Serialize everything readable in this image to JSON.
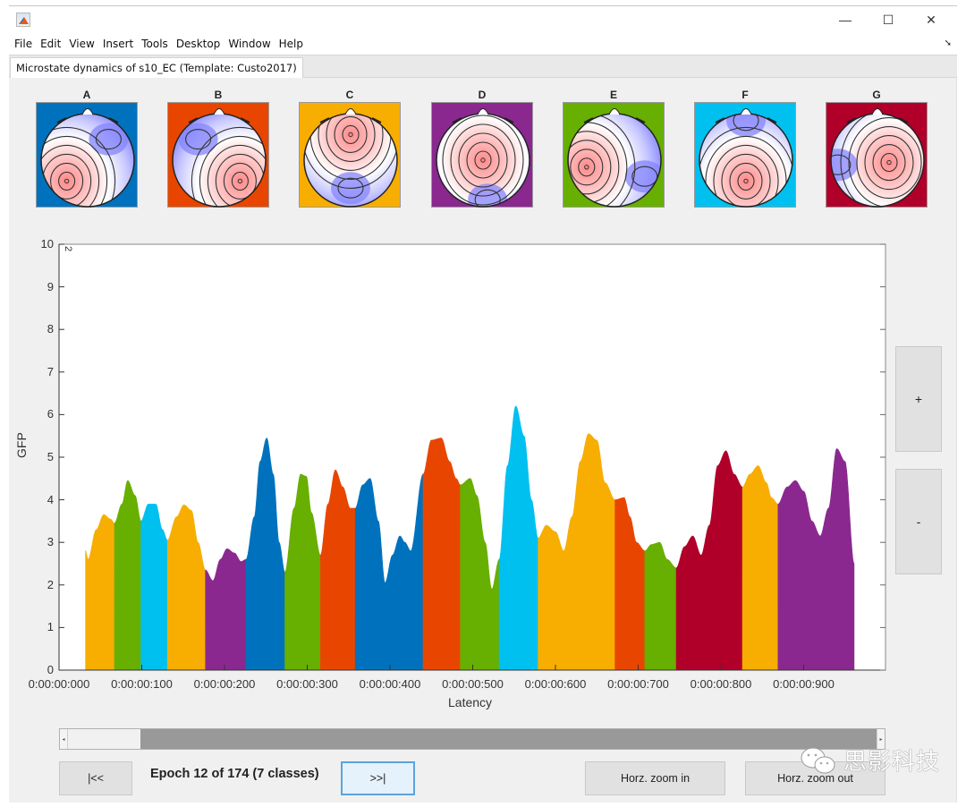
{
  "window": {
    "title": "",
    "controls": {
      "minimize": "—",
      "maximize": "☐",
      "close": "✕"
    }
  },
  "menubar": {
    "items": [
      "File",
      "Edit",
      "View",
      "Insert",
      "Tools",
      "Desktop",
      "Window",
      "Help"
    ],
    "dock_icon": "dock-arrow-icon"
  },
  "tab": {
    "label": "Microstate dynamics of s10_EC (Template: Custo2017)"
  },
  "templates": {
    "maps": [
      {
        "label": "A",
        "color": "#0072BD"
      },
      {
        "label": "B",
        "color": "#E84600"
      },
      {
        "label": "C",
        "color": "#F7AE00"
      },
      {
        "label": "D",
        "color": "#8A288F"
      },
      {
        "label": "E",
        "color": "#67AF00"
      },
      {
        "label": "F",
        "color": "#00C0F0"
      },
      {
        "label": "G",
        "color": "#B0002A"
      }
    ]
  },
  "side_buttons": {
    "plus": "+",
    "minus": "-"
  },
  "navigation": {
    "first_label": "|<<",
    "next_label": ">>|",
    "epoch_text": "Epoch 12 of 174 (7 classes)",
    "zoom_in_label": "Horz. zoom in",
    "zoom_out_label": "Horz. zoom out"
  },
  "scrollbar": {
    "left_arrow": "◂",
    "right_arrow": "▸"
  },
  "watermark": {
    "text": "思影科技"
  },
  "chart_data": {
    "type": "area",
    "title": "",
    "xlabel": "Latency",
    "ylabel": "GFP",
    "ylim": [
      0,
      10
    ],
    "xlim_ms": [
      0,
      1000
    ],
    "yticks": [
      "0",
      "1",
      "2",
      "3",
      "4",
      "5",
      "6",
      "7",
      "8",
      "9",
      "10"
    ],
    "xticks": [
      "0:00:00:000",
      "0:00:00:100",
      "0:00:00:200",
      "0:00:00:300",
      "0:00:00:400",
      "0:00:00:500",
      "0:00:00:600",
      "0:00:00:700",
      "0:00:00:800",
      "0:00:00:900"
    ],
    "corner_annotation": "2",
    "grid": false,
    "legend": "none (colors map to template classes A–G)",
    "segments": [
      {
        "class": "C",
        "color": "#F7AE00",
        "start_ms": 32,
        "end_ms": 67
      },
      {
        "class": "E",
        "color": "#67AF00",
        "start_ms": 67,
        "end_ms": 99
      },
      {
        "class": "F",
        "color": "#00C0F0",
        "start_ms": 99,
        "end_ms": 131
      },
      {
        "class": "C",
        "color": "#F7AE00",
        "start_ms": 131,
        "end_ms": 177
      },
      {
        "class": "D",
        "color": "#8A288F",
        "start_ms": 177,
        "end_ms": 226
      },
      {
        "class": "A",
        "color": "#0072BD",
        "start_ms": 226,
        "end_ms": 273
      },
      {
        "class": "E",
        "color": "#67AF00",
        "start_ms": 273,
        "end_ms": 316
      },
      {
        "class": "B",
        "color": "#E84600",
        "start_ms": 316,
        "end_ms": 358
      },
      {
        "class": "A",
        "color": "#0072BD",
        "start_ms": 358,
        "end_ms": 440
      },
      {
        "class": "B",
        "color": "#E84600",
        "start_ms": 440,
        "end_ms": 485
      },
      {
        "class": "E",
        "color": "#67AF00",
        "start_ms": 485,
        "end_ms": 532
      },
      {
        "class": "F",
        "color": "#00C0F0",
        "start_ms": 532,
        "end_ms": 579
      },
      {
        "class": "C",
        "color": "#F7AE00",
        "start_ms": 579,
        "end_ms": 672
      },
      {
        "class": "B",
        "color": "#E84600",
        "start_ms": 672,
        "end_ms": 708
      },
      {
        "class": "E",
        "color": "#67AF00",
        "start_ms": 708,
        "end_ms": 746
      },
      {
        "class": "G",
        "color": "#B0002A",
        "start_ms": 746,
        "end_ms": 826
      },
      {
        "class": "C",
        "color": "#F7AE00",
        "start_ms": 826,
        "end_ms": 869
      },
      {
        "class": "D",
        "color": "#8A288F",
        "start_ms": 869,
        "end_ms": 961
      }
    ],
    "gfp_curve": {
      "x_ms": [
        32,
        35,
        45,
        54,
        62,
        67,
        76,
        83,
        92,
        99,
        108,
        117,
        125,
        131,
        142,
        151,
        160,
        168,
        177,
        186,
        195,
        203,
        212,
        220,
        226,
        236,
        243,
        251,
        259,
        266,
        273,
        284,
        292,
        299,
        305,
        316,
        325,
        334,
        343,
        352,
        358,
        367,
        376,
        386,
        394,
        403,
        412,
        418,
        425,
        440,
        450,
        462,
        472,
        480,
        485,
        497,
        505,
        515,
        523,
        532,
        542,
        552,
        562,
        571,
        579,
        589,
        600,
        610,
        620,
        630,
        640,
        650,
        660,
        672,
        683,
        690,
        698,
        708,
        716,
        726,
        735,
        746,
        756,
        766,
        776,
        786,
        796,
        806,
        816,
        826,
        835,
        845,
        855,
        861,
        869,
        880,
        890,
        900,
        910,
        920,
        930,
        940,
        950,
        961
      ],
      "gfp": [
        2.8,
        2.6,
        3.3,
        3.65,
        3.55,
        3.45,
        3.9,
        4.45,
        4.1,
        3.5,
        3.9,
        3.9,
        3.3,
        3.05,
        3.6,
        3.88,
        3.75,
        3.0,
        2.35,
        2.1,
        2.6,
        2.85,
        2.75,
        2.55,
        2.6,
        3.6,
        4.9,
        5.45,
        4.6,
        3.0,
        2.3,
        3.8,
        4.6,
        4.55,
        3.7,
        2.7,
        3.9,
        4.7,
        4.3,
        3.8,
        3.8,
        4.35,
        4.5,
        3.5,
        2.05,
        2.7,
        3.15,
        3.0,
        2.8,
        4.6,
        5.4,
        5.45,
        4.9,
        4.5,
        4.35,
        4.5,
        4.1,
        3.0,
        1.9,
        2.6,
        4.8,
        6.2,
        5.5,
        4.0,
        3.1,
        3.4,
        3.25,
        2.8,
        3.6,
        4.9,
        5.55,
        5.4,
        4.4,
        4.0,
        4.05,
        3.6,
        3.0,
        2.8,
        2.95,
        3.0,
        2.6,
        2.4,
        2.9,
        3.15,
        2.7,
        3.4,
        4.8,
        5.15,
        4.6,
        4.3,
        4.6,
        4.8,
        4.4,
        4.05,
        3.9,
        4.3,
        4.45,
        4.2,
        3.5,
        3.15,
        3.8,
        5.2,
        4.9,
        2.5
      ]
    }
  }
}
